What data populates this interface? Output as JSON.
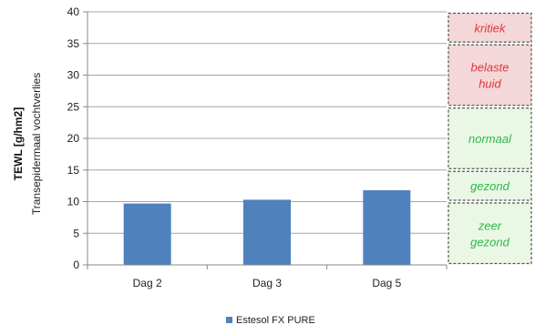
{
  "chart_data": {
    "type": "bar",
    "categories": [
      "Dag 2",
      "Dag 3",
      "Dag 5"
    ],
    "series": [
      {
        "name": "Estesol FX PURE",
        "values": [
          9.7,
          10.3,
          11.8
        ],
        "color": "#4f81bd"
      }
    ],
    "ylabel_line1": "TEWL [g/hm2]",
    "ylabel_line2": "Transepidermaal vochtverlies",
    "ylim": [
      0,
      40
    ],
    "yticks": [
      0,
      5,
      10,
      15,
      20,
      25,
      30,
      35,
      40
    ],
    "grid": true,
    "legend_position": "bottom",
    "zones": [
      {
        "lines": [
          "zeer",
          "gezond"
        ],
        "from": 0,
        "to": 10,
        "color": "#2eb84a",
        "fill": "#eaf7e5"
      },
      {
        "lines": [
          "gezond"
        ],
        "from": 10,
        "to": 15,
        "color": "#2eb84a",
        "fill": "#eaf7e5"
      },
      {
        "lines": [
          "normaal"
        ],
        "from": 15,
        "to": 25,
        "color": "#2eb84a",
        "fill": "#eaf7e5"
      },
      {
        "lines": [
          "belaste",
          "huid"
        ],
        "from": 25,
        "to": 35,
        "color": "#e0363c",
        "fill": "#f4d7d8"
      },
      {
        "lines": [
          "kritiek"
        ],
        "from": 35,
        "to": 40,
        "color": "#e0363c",
        "fill": "#f4d7d8"
      }
    ]
  }
}
